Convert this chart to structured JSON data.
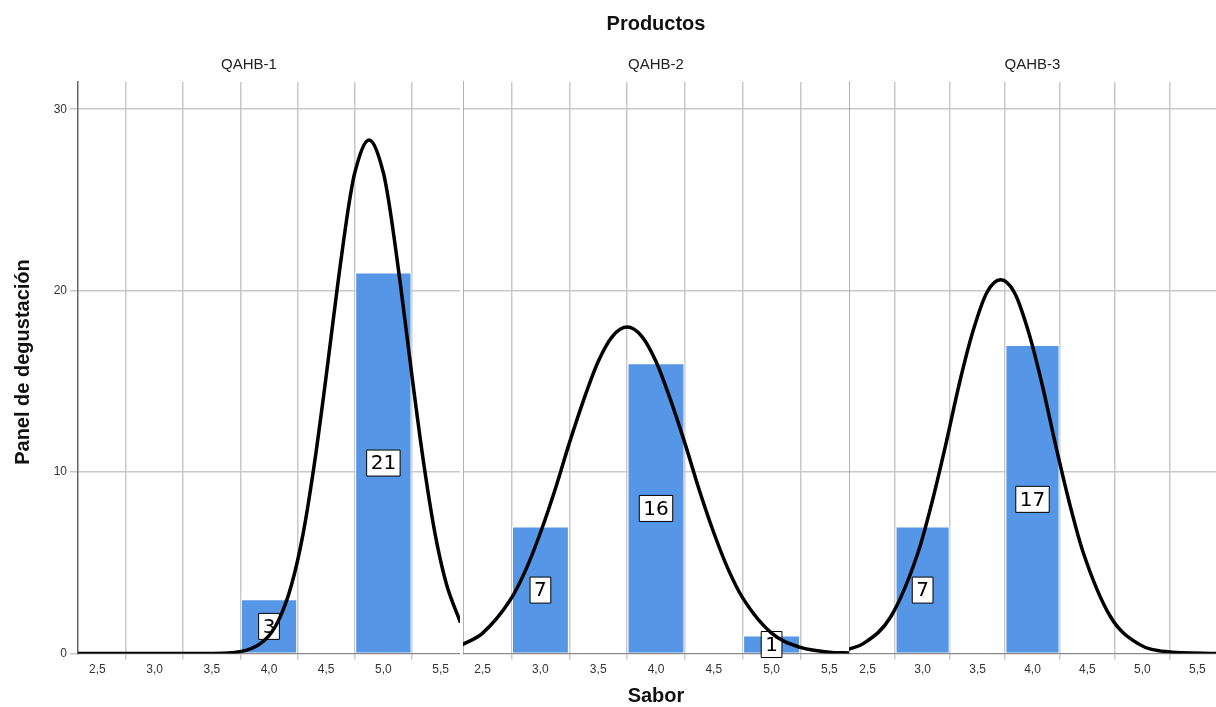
{
  "chart_data": [
    {
      "type": "histogram",
      "title": "QAHB-1",
      "ylabel": "Panel de degustación",
      "xlim": [
        2.33,
        5.67
      ],
      "ylim": [
        0,
        31.5
      ],
      "xticks": [
        {
          "value": 2.5,
          "label": "2,5"
        },
        {
          "value": 3.0,
          "label": "3,0"
        },
        {
          "value": 3.5,
          "label": "3,5"
        },
        {
          "value": 4.0,
          "label": "4,0"
        },
        {
          "value": 4.5,
          "label": "4,5"
        },
        {
          "value": 5.0,
          "label": "5,0"
        },
        {
          "value": 5.5,
          "label": "5,5"
        }
      ],
      "yticks": [
        0,
        10,
        20,
        30
      ],
      "grid": true,
      "series": [
        {
          "bins": [
            3.5,
            4.5,
            5.5
          ],
          "values": [
            3,
            21
          ],
          "value_labels": [
            "3",
            "21"
          ],
          "color": "#5596e6"
        },
        {
          "type": "line",
          "color": "#000000",
          "x": [
            2.33,
            3.0,
            3.5,
            3.8,
            4.0,
            4.1,
            4.2,
            4.3,
            4.4,
            4.5,
            4.6,
            4.7,
            4.75,
            4.875,
            5.0,
            5.05,
            5.15,
            5.25,
            5.35,
            5.45,
            5.55,
            5.67
          ],
          "values": [
            0,
            0,
            0.01,
            0.18,
            0.99,
            2.05,
            3.86,
            6.67,
            10.6,
            15.3,
            20.3,
            24.8,
            26.5,
            28.3,
            26.5,
            24.8,
            20.3,
            15.3,
            10.6,
            6.67,
            3.86,
            1.78
          ]
        }
      ]
    },
    {
      "type": "histogram",
      "title": "QAHB-2",
      "xlabel": "Sabor",
      "annotations": [
        "Productos"
      ],
      "xlim": [
        2.33,
        5.67
      ],
      "ylim": [
        0,
        31.5
      ],
      "xticks": [
        {
          "value": 2.5,
          "label": "2,5"
        },
        {
          "value": 3.0,
          "label": "3,0"
        },
        {
          "value": 3.5,
          "label": "3,5"
        },
        {
          "value": 4.0,
          "label": "4,0"
        },
        {
          "value": 4.5,
          "label": "4,5"
        },
        {
          "value": 5.0,
          "label": "5,0"
        },
        {
          "value": 5.5,
          "label": "5,5"
        }
      ],
      "yticks": [
        0,
        10,
        20,
        30
      ],
      "tick_labels": "x",
      "grid": true,
      "series": [
        {
          "bins": [
            2.5,
            3.5,
            4.5,
            5.5
          ],
          "values": [
            7,
            16,
            1
          ],
          "value_labels": [
            "7",
            "16",
            "1"
          ],
          "color": "#5596e6"
        },
        {
          "type": "line",
          "color": "#000000",
          "x": [
            2.33,
            2.5,
            2.75,
            2.875,
            3.0,
            3.125,
            3.25,
            3.375,
            3.5,
            3.625,
            3.75,
            3.875,
            4.0,
            4.125,
            4.25,
            4.375,
            4.5,
            4.625,
            4.75,
            5.0,
            5.25,
            5.5,
            5.67
          ],
          "values": [
            0.51,
            1.13,
            3.07,
            4.64,
            6.66,
            9.0,
            11.6,
            14.0,
            16.1,
            17.5,
            18.0,
            17.5,
            16.1,
            14.0,
            11.6,
            9.0,
            6.66,
            4.64,
            3.07,
            1.13,
            0.34,
            0.08,
            0.03
          ]
        }
      ]
    },
    {
      "type": "histogram",
      "title": "QAHB-3",
      "xlim": [
        2.33,
        5.67
      ],
      "ylim": [
        0,
        31.5
      ],
      "xticks": [
        {
          "value": 2.5,
          "label": "2,5"
        },
        {
          "value": 3.0,
          "label": "3,0"
        },
        {
          "value": 3.5,
          "label": "3,5"
        },
        {
          "value": 4.0,
          "label": "4,0"
        },
        {
          "value": 4.5,
          "label": "4,5"
        },
        {
          "value": 5.0,
          "label": "5,0"
        },
        {
          "value": 5.5,
          "label": "5,5"
        }
      ],
      "yticks": [
        0,
        10,
        20,
        30
      ],
      "tick_labels": "x",
      "grid": true,
      "series": [
        {
          "bins": [
            2.5,
            3.5,
            4.5
          ],
          "values": [
            7,
            17
          ],
          "value_labels": [
            "7",
            "17"
          ],
          "color": "#5596e6"
        },
        {
          "type": "line",
          "color": "#000000",
          "x": [
            2.33,
            2.46,
            2.71,
            2.96,
            3.085,
            3.21,
            3.335,
            3.46,
            3.585,
            3.71,
            3.835,
            3.96,
            4.085,
            4.21,
            4.335,
            4.46,
            4.71,
            4.96,
            5.21,
            5.67
          ],
          "values": [
            0.25,
            0.55,
            2.03,
            5.6,
            8.33,
            11.5,
            14.9,
            17.8,
            19.9,
            20.6,
            19.9,
            17.8,
            14.9,
            11.5,
            8.33,
            5.6,
            2.03,
            0.55,
            0.11,
            0
          ]
        }
      ]
    }
  ]
}
